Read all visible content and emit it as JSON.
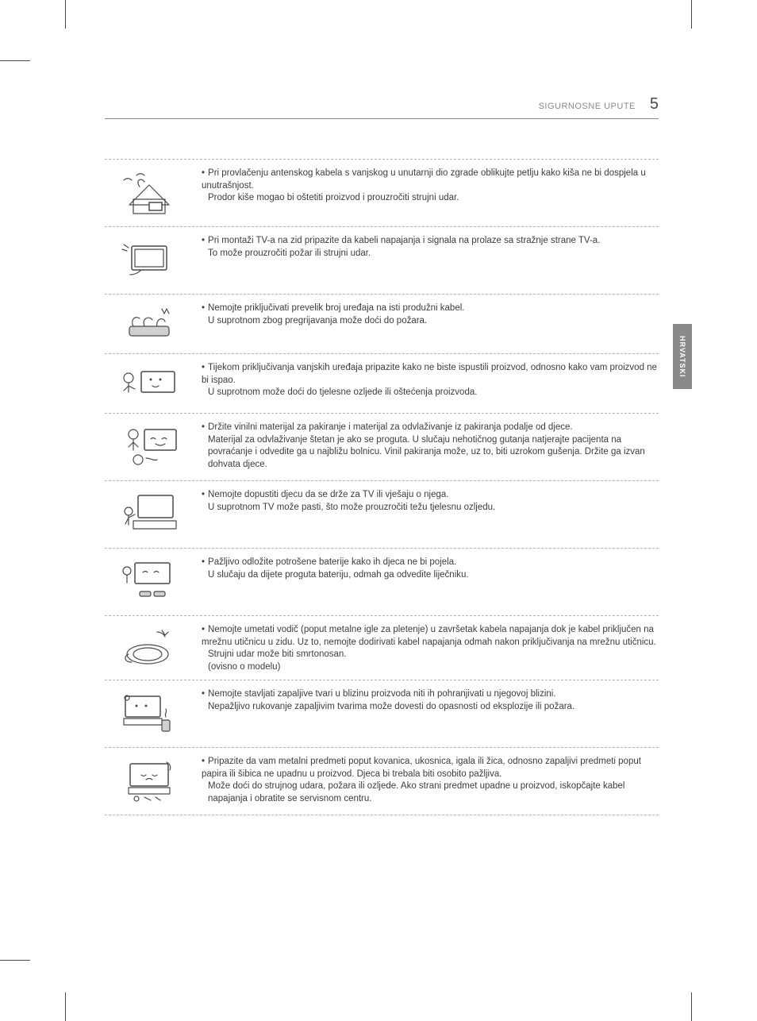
{
  "header": {
    "section": "SIGURNOSNE UPUTE",
    "page_number": "5"
  },
  "side_tab": "HRVATSKI",
  "rows": [
    {
      "lines": [
        {
          "b": true,
          "t": "Pri provlačenju antenskog kabela s vanjskog u unutarnji dio zgrade oblikujte petlju kako kiša ne bi dospjela u unutrašnjost."
        },
        {
          "b": false,
          "t": "Prodor kiše mogao bi oštetiti proizvod i prouzročiti strujni udar."
        }
      ]
    },
    {
      "lines": [
        {
          "b": true,
          "t": "Pri montaži TV-a na zid pripazite da kabeli napajanja i signala na prolaze sa stražnje strane TV-a."
        },
        {
          "b": false,
          "t": "To može prouzročiti požar ili strujni udar."
        }
      ]
    },
    {
      "lines": [
        {
          "b": true,
          "t": "Nemojte priključivati prevelik broj uređaja na isti produžni kabel."
        },
        {
          "b": false,
          "t": "U suprotnom zbog pregrijavanja može doći do požara."
        }
      ]
    },
    {
      "lines": [
        {
          "b": true,
          "t": "Tijekom priključivanja vanjskih uređaja pripazite kako ne biste ispustili proizvod, odnosno kako vam proizvod ne bi ispao."
        },
        {
          "b": false,
          "t": "U suprotnom može doći do tjelesne ozljede ili oštećenja proizvoda."
        }
      ]
    },
    {
      "lines": [
        {
          "b": true,
          "t": "Držite vinilni materijal za pakiranje i materijal za odvlaživanje iz pakiranja podalje od djece."
        },
        {
          "b": false,
          "t": "Materijal za odvlaživanje štetan je ako se proguta. U slučaju nehotičnog gutanja natjerajte pacijenta na povraćanje i odvedite ga u najbližu bolnicu. Vinil pakiranja može, uz to, biti uzrokom gušenja. Držite ga izvan dohvata djece."
        }
      ]
    },
    {
      "lines": [
        {
          "b": true,
          "t": "Nemojte dopustiti djecu da se drže za TV ili vješaju o njega."
        },
        {
          "b": false,
          "t": "U suprotnom TV može pasti, što može prouzročiti težu tjelesnu ozljedu."
        }
      ]
    },
    {
      "lines": [
        {
          "b": true,
          "t": "Pažljivo odložite potrošene baterije kako ih djeca ne bi pojela."
        },
        {
          "b": false,
          "t": "U slučaju da dijete proguta bateriju, odmah ga odvedite liječniku."
        }
      ]
    },
    {
      "lines": [
        {
          "b": true,
          "t": "Nemojte umetati vodič (poput metalne igle za pletenje) u završetak kabela napajanja dok je kabel priključen na mrežnu utičnicu u zidu. Uz to, nemojte dodirivati kabel napajanja odmah nakon priključivanja na mrežnu utičnicu."
        },
        {
          "b": false,
          "t": "Strujni udar može biti smrtonosan."
        },
        {
          "b": false,
          "t": "(ovisno o modelu)"
        }
      ]
    },
    {
      "lines": [
        {
          "b": true,
          "t": "Nemojte stavljati zapaljive tvari u blizinu proizvoda niti ih pohranjivati u njegovoj blizini."
        },
        {
          "b": false,
          "t": "Nepažljivo rukovanje zapaljivim tvarima može dovesti do opasnosti od eksplozije ili požara."
        }
      ]
    },
    {
      "lines": [
        {
          "b": true,
          "t": "Pripazite da vam metalni predmeti poput kovanica, ukosnica, igala ili žica, odnosno zapaljivi predmeti poput papira ili šibica ne upadnu u proizvod. Djeca bi trebala biti osobito pažljiva."
        },
        {
          "b": false,
          "t": "Može doći do strujnog udara, požara ili ozljede. Ako strani predmet upadne u proizvod, iskopčajte kabel napajanja i obratite se servisnom centru."
        }
      ]
    }
  ]
}
